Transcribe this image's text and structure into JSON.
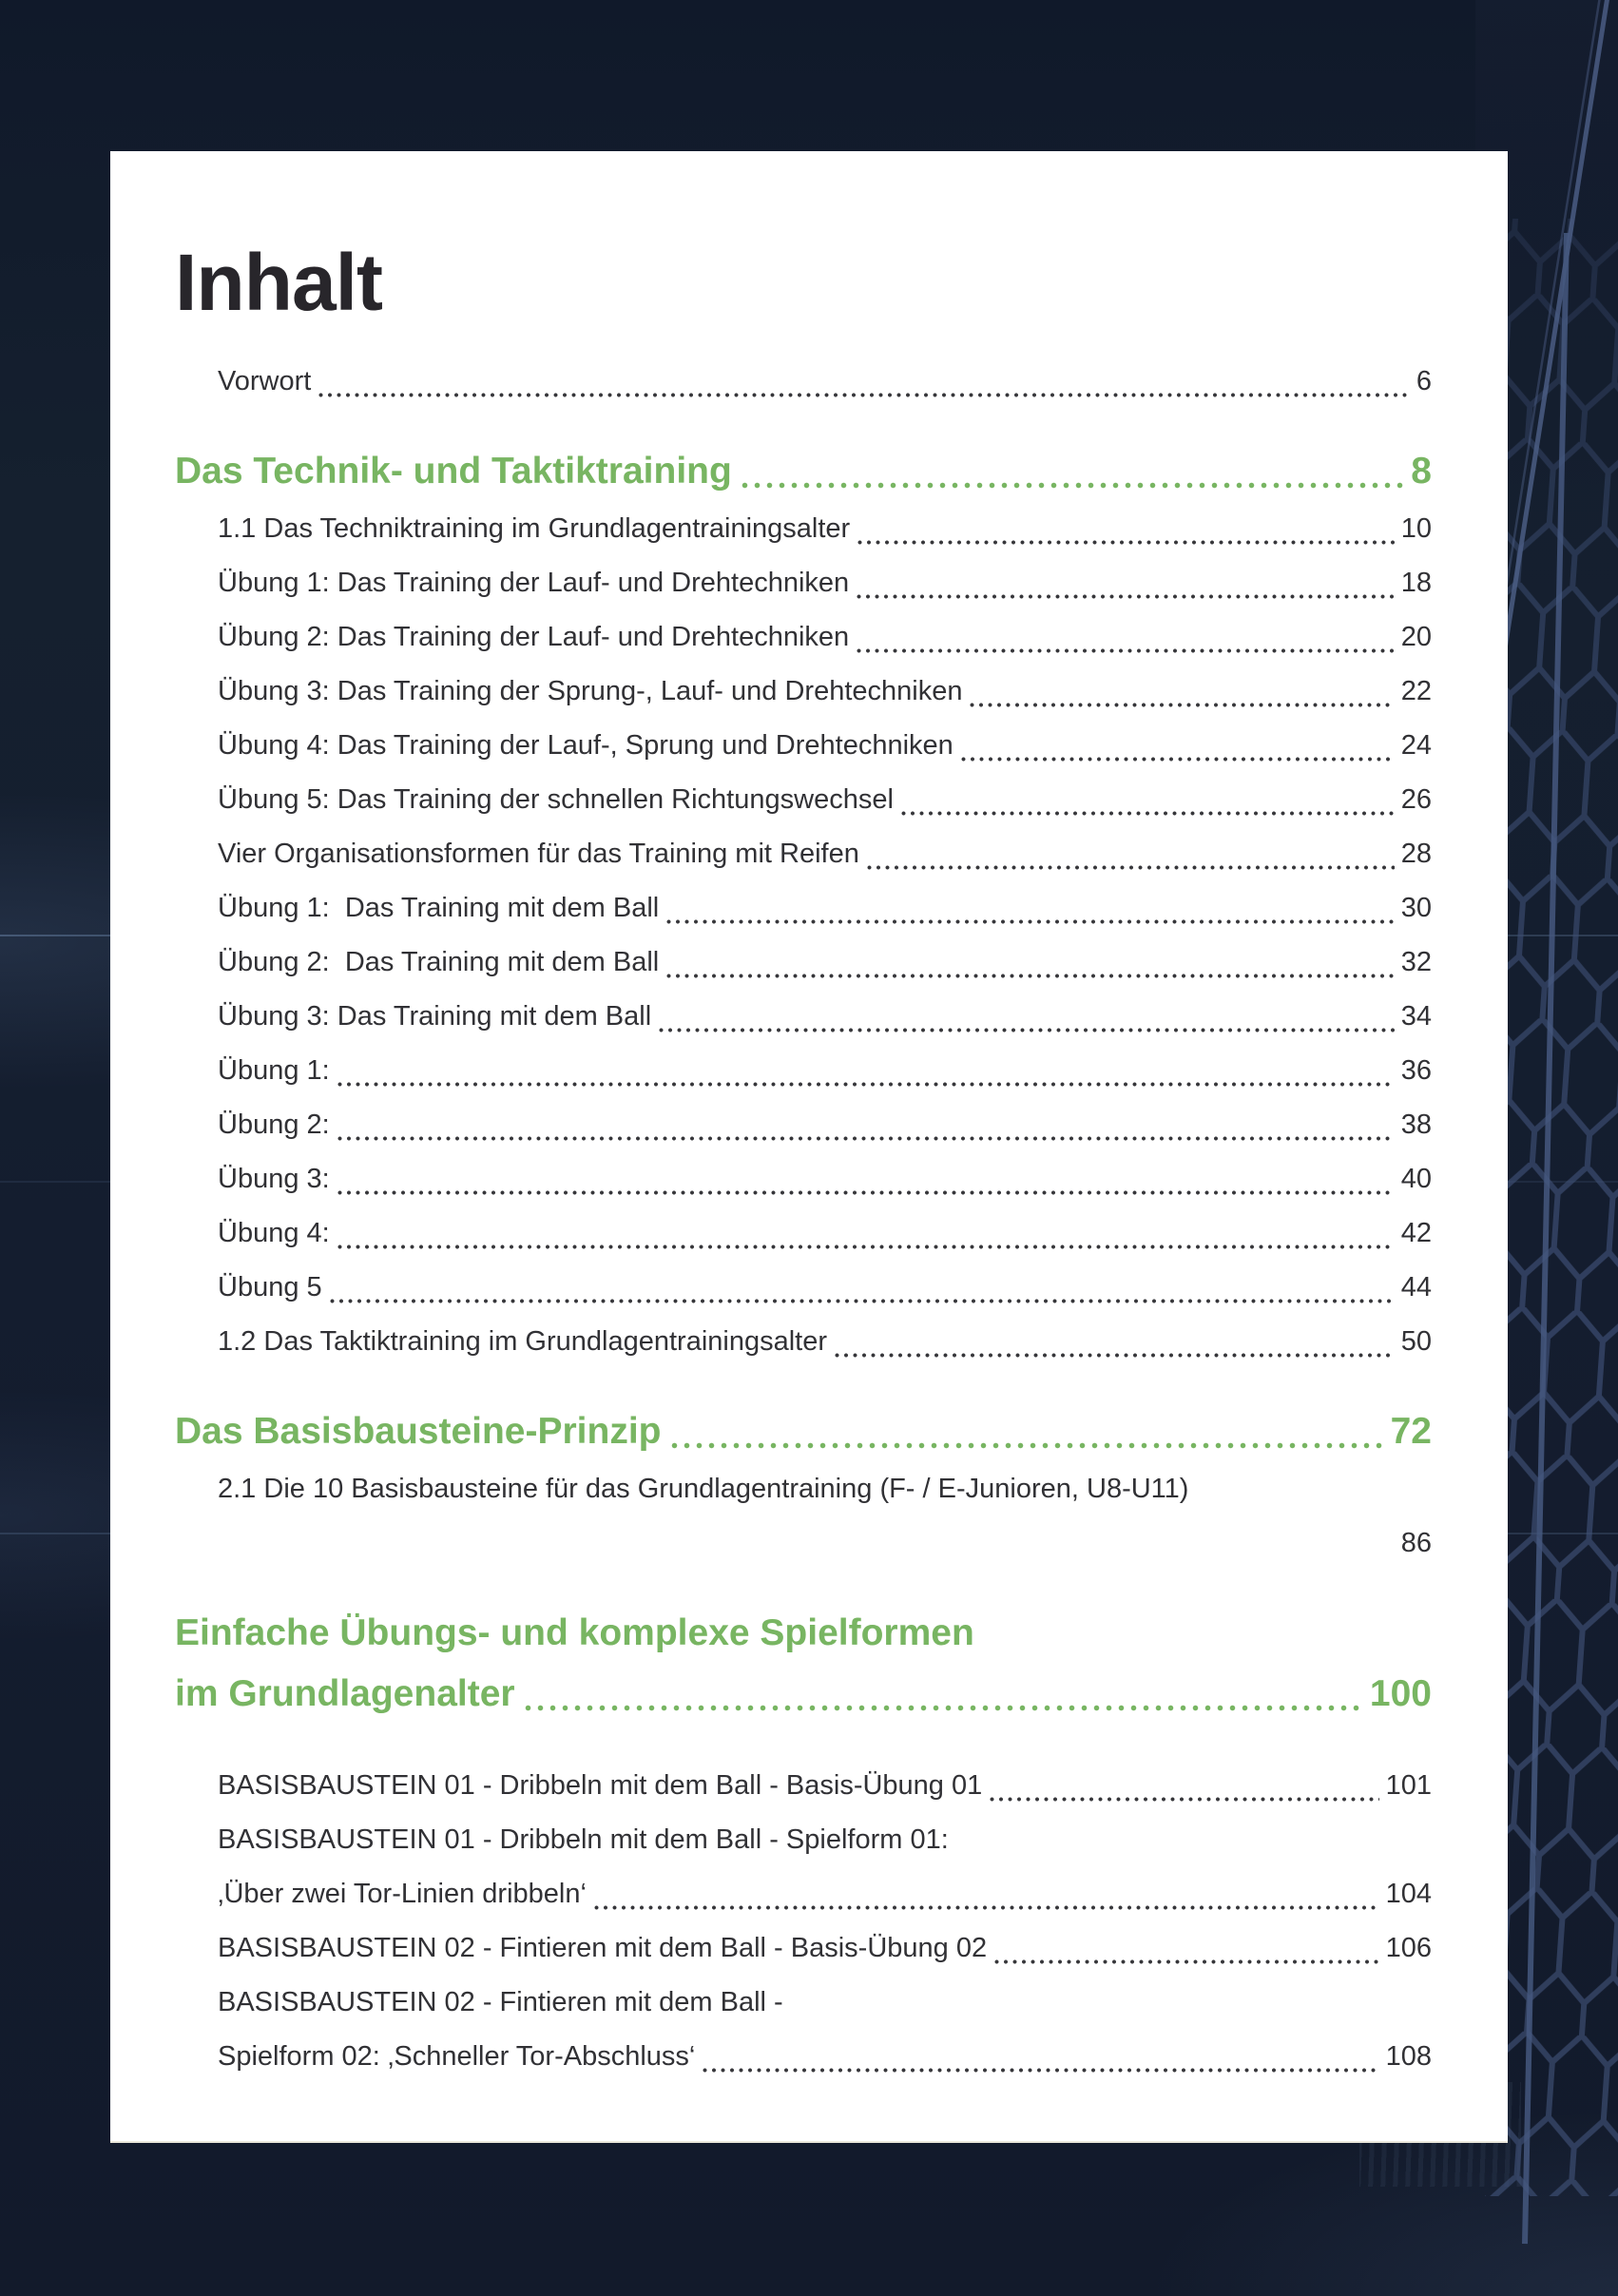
{
  "page_title": "Inhalt",
  "colors": {
    "background_navy": "#141d2f",
    "card_white": "#ffffff",
    "accent_green": "#78b562",
    "text_dark": "#313135",
    "net_line": "#41537a"
  },
  "toc": {
    "rows": [
      {
        "type": "entry",
        "text": "Vorwort",
        "dots": true,
        "page": "6"
      },
      {
        "type": "chapter",
        "text": "Das Technik- und Taktiktraining",
        "dots": true,
        "page": "8",
        "gap": "lg"
      },
      {
        "type": "entry",
        "text": "1.1 Das Techniktraining im Grundlagentrainingsalter",
        "dots": true,
        "page": "10"
      },
      {
        "type": "entry",
        "text": "Übung 1: Das Training der Lauf- und Drehtechniken",
        "dots": true,
        "page": "18"
      },
      {
        "type": "entry",
        "text": "Übung 2: Das Training der Lauf- und Drehtechniken",
        "dots": true,
        "page": "20"
      },
      {
        "type": "entry",
        "text": "Übung 3: Das Training der Sprung-, Lauf- und Drehtechniken",
        "dots": true,
        "page": "22"
      },
      {
        "type": "entry",
        "text": "Übung 4: Das Training der Lauf-, Sprung und Drehtechniken",
        "dots": true,
        "page": "24"
      },
      {
        "type": "entry",
        "text": "Übung 5: Das Training der schnellen Richtungswechsel",
        "dots": true,
        "page": "26"
      },
      {
        "type": "entry",
        "text": "Vier Organisationsformen für das Training mit Reifen",
        "dots": true,
        "page": "28"
      },
      {
        "type": "entry",
        "text": "Übung 1:  Das Training mit dem Ball",
        "dots": true,
        "page": "30"
      },
      {
        "type": "entry",
        "text": "Übung 2:  Das Training mit dem Ball",
        "dots": true,
        "page": "32"
      },
      {
        "type": "entry",
        "text": "Übung 3: Das Training mit dem Ball",
        "dots": true,
        "page": "34"
      },
      {
        "type": "entry",
        "text": "Übung 1:",
        "dots": true,
        "page": "36"
      },
      {
        "type": "entry",
        "text": "Übung 2:",
        "dots": true,
        "page": "38"
      },
      {
        "type": "entry",
        "text": "Übung 3:",
        "dots": true,
        "page": "40"
      },
      {
        "type": "entry",
        "text": "Übung 4:",
        "dots": true,
        "page": "42"
      },
      {
        "type": "entry",
        "text": "Übung 5",
        "dots": true,
        "page": "44"
      },
      {
        "type": "entry",
        "text": "1.2 Das Taktiktraining im Grundlagentrainingsalter",
        "dots": true,
        "page": "50"
      },
      {
        "type": "chapter",
        "text": "Das Basisbausteine-Prinzip",
        "dots": true,
        "page": "72",
        "gap": "lg"
      },
      {
        "type": "entry",
        "text": "2.1 Die 10 Basisbausteine für das Grundlagentraining (F- / E-Junioren, U8-U11)",
        "dots": false,
        "page": null
      },
      {
        "type": "entry",
        "text": "",
        "dots": false,
        "page": "86"
      },
      {
        "type": "chapter",
        "text": "Einfache Übungs- und komplexe Spielformen",
        "dots": false,
        "page": null,
        "gap": "lg"
      },
      {
        "type": "chapter",
        "text": "im Grundlagenalter",
        "dots": true,
        "page": "100"
      },
      {
        "type": "entry",
        "text": "BASISBAUSTEIN 01 - Dribbeln mit dem Ball - Basis-Übung 01",
        "dots": true,
        "page": "101",
        "gap": "md"
      },
      {
        "type": "entry",
        "text": "BASISBAUSTEIN 01 - Dribbeln mit dem Ball - Spielform 01:",
        "dots": false,
        "page": null
      },
      {
        "type": "entry",
        "text": "‚Über zwei Tor-Linien dribbeln‘",
        "dots": true,
        "page": "104"
      },
      {
        "type": "entry",
        "text": "BASISBAUSTEIN 02 - Fintieren mit dem Ball - Basis-Übung 02",
        "dots": true,
        "page": "106"
      },
      {
        "type": "entry",
        "text": "BASISBAUSTEIN 02 - Fintieren mit dem Ball -",
        "dots": false,
        "page": null
      },
      {
        "type": "entry",
        "text": "Spielform 02: ‚Schneller Tor-Abschluss‘",
        "dots": true,
        "page": "108"
      }
    ]
  }
}
